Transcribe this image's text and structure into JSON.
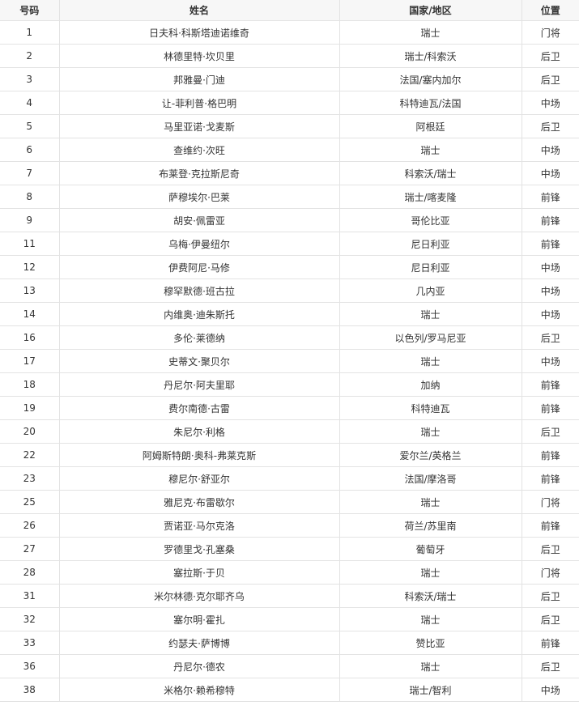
{
  "table": {
    "headers": [
      "号码",
      "姓名",
      "国家/地区",
      "位置"
    ],
    "rows": [
      [
        "1",
        "日夫科·科斯塔迪诺维奇",
        "瑞士",
        "门将"
      ],
      [
        "2",
        "林德里特·坎贝里",
        "瑞士/科索沃",
        "后卫"
      ],
      [
        "3",
        "邦雅曼·门迪",
        "法国/塞内加尔",
        "后卫"
      ],
      [
        "4",
        "让-菲利普·格巴明",
        "科特迪瓦/法国",
        "中场"
      ],
      [
        "5",
        "马里亚诺·戈麦斯",
        "阿根廷",
        "后卫"
      ],
      [
        "6",
        "查维约·次旺",
        "瑞士",
        "中场"
      ],
      [
        "7",
        "布莱登·克拉斯尼奇",
        "科索沃/瑞士",
        "中场"
      ],
      [
        "8",
        "萨穆埃尔·巴莱",
        "瑞士/喀麦隆",
        "前锋"
      ],
      [
        "9",
        "胡安·佩雷亚",
        "哥伦比亚",
        "前锋"
      ],
      [
        "11",
        "乌梅·伊曼纽尔",
        "尼日利亚",
        "前锋"
      ],
      [
        "12",
        "伊费阿尼·马修",
        "尼日利亚",
        "中场"
      ],
      [
        "13",
        "穆罕默德·班古拉",
        "几内亚",
        "中场"
      ],
      [
        "14",
        "内维奥·迪朱斯托",
        "瑞士",
        "中场"
      ],
      [
        "16",
        "多伦·莱德纳",
        "以色列/罗马尼亚",
        "后卫"
      ],
      [
        "17",
        "史蒂文·聚贝尔",
        "瑞士",
        "中场"
      ],
      [
        "18",
        "丹尼尔·阿夫里耶",
        "加纳",
        "前锋"
      ],
      [
        "19",
        "费尔南德·古雷",
        "科特迪瓦",
        "前锋"
      ],
      [
        "20",
        "朱尼尔·利格",
        "瑞士",
        "后卫"
      ],
      [
        "22",
        "阿姆斯特朗·奥科-弗莱克斯",
        "爱尔兰/英格兰",
        "前锋"
      ],
      [
        "23",
        "穆尼尔·舒亚尔",
        "法国/摩洛哥",
        "前锋"
      ],
      [
        "25",
        "雅尼克·布雷歇尔",
        "瑞士",
        "门将"
      ],
      [
        "26",
        "贾诺亚·马尔克洛",
        "荷兰/苏里南",
        "前锋"
      ],
      [
        "27",
        "罗德里戈·孔塞桑",
        "葡萄牙",
        "后卫"
      ],
      [
        "28",
        "塞拉斯·于贝",
        "瑞士",
        "门将"
      ],
      [
        "31",
        "米尔林德·克尔耶齐乌",
        "科索沃/瑞士",
        "后卫"
      ],
      [
        "32",
        "塞尔明·霍扎",
        "瑞士",
        "后卫"
      ],
      [
        "33",
        "约瑟夫·萨博博",
        "赞比亚",
        "前锋"
      ],
      [
        "36",
        "丹尼尔·德农",
        "瑞士",
        "后卫"
      ],
      [
        "38",
        "米格尔·赖希穆特",
        "瑞士/智利",
        "中场"
      ]
    ]
  }
}
